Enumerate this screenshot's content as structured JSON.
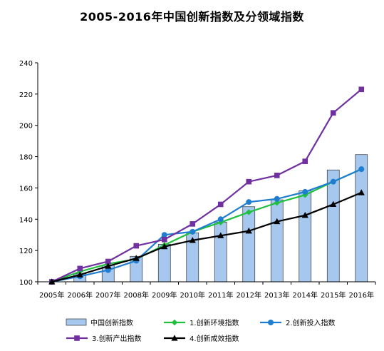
{
  "chart_data": {
    "type": "bar+line",
    "title": "2005-2016年中国创新指数及分领域指数",
    "categories": [
      "2005年",
      "2006年",
      "2007年",
      "2008年",
      "2009年",
      "2010年",
      "2011年",
      "2012年",
      "2013年",
      "2014年",
      "2015年",
      "2016年"
    ],
    "ylim": [
      100,
      240
    ],
    "yticks": [
      100,
      120,
      140,
      160,
      180,
      200,
      220,
      240
    ],
    "grid": false,
    "legend_position": "bottom",
    "bar_series": {
      "name": "中国创新指数",
      "color": "#a6c8ee",
      "values": [
        100,
        105.1,
        110.6,
        116.3,
        124.0,
        131.3,
        138.2,
        148.0,
        152.4,
        158.2,
        171.5,
        181.3
      ]
    },
    "line_series": [
      {
        "name": "1.创新环境指数",
        "color": "#1fbf3f",
        "marker": "diamond",
        "values": [
          100,
          106.5,
          111.5,
          114.5,
          123.5,
          132.0,
          138.0,
          144.5,
          150.5,
          155.5,
          164.0,
          172.0
        ]
      },
      {
        "name": "2.创新投入指数",
        "color": "#1f7ecf",
        "marker": "circle",
        "values": [
          100,
          103.5,
          107.5,
          113.5,
          130.0,
          132.0,
          140.0,
          151.0,
          153.0,
          157.5,
          164.0,
          172.0
        ]
      },
      {
        "name": "3.创新产出指数",
        "color": "#7030a0",
        "marker": "square",
        "values": [
          100,
          108.5,
          113.0,
          123.0,
          127.0,
          137.0,
          149.5,
          164.0,
          168.0,
          177.0,
          208.0,
          223.0
        ]
      },
      {
        "name": "4.创新成效指数",
        "color": "#000000",
        "marker": "triangle",
        "values": [
          100,
          104.5,
          110.0,
          115.0,
          122.5,
          126.5,
          129.5,
          132.5,
          138.5,
          142.5,
          149.5,
          157.0
        ]
      }
    ]
  }
}
